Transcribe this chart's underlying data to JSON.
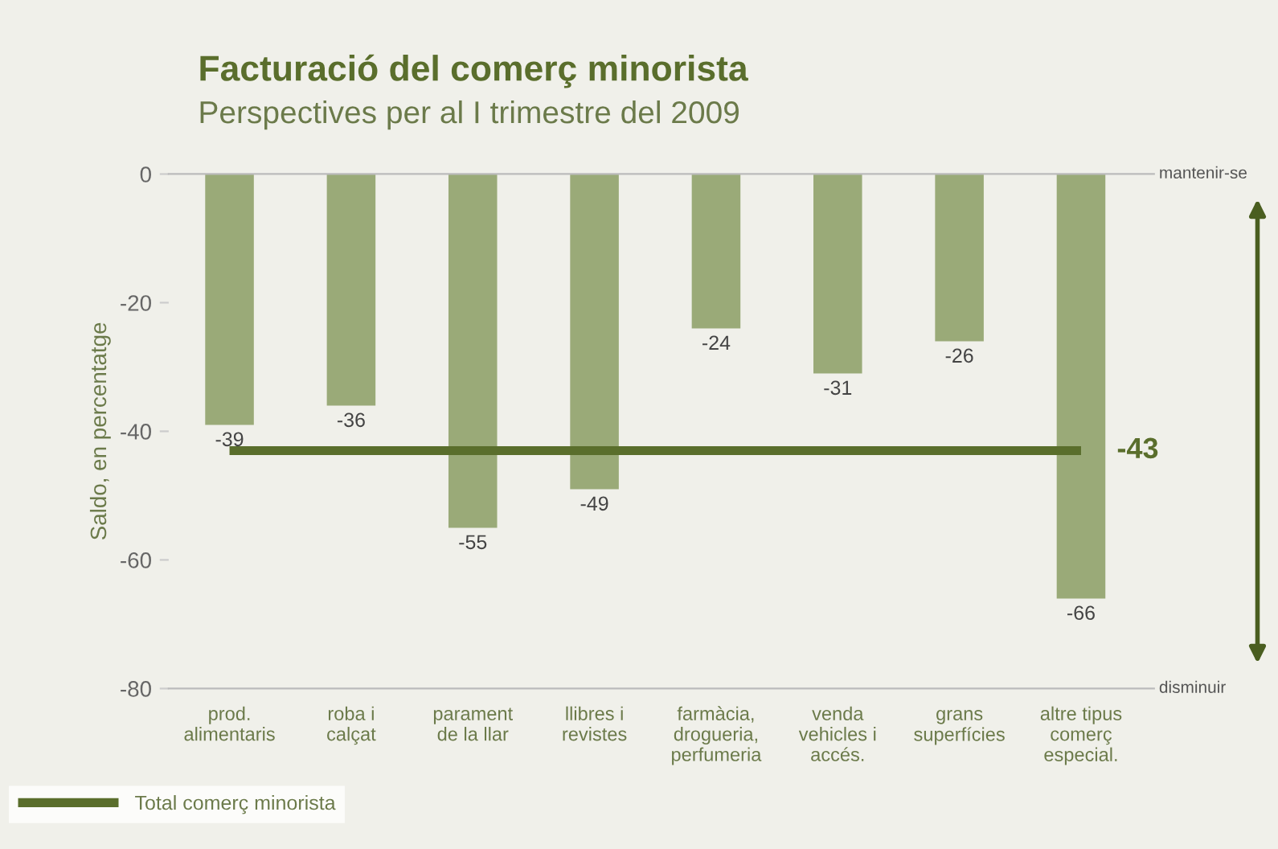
{
  "chart_data": {
    "type": "bar",
    "title": "Facturació del comerç minorista",
    "subtitle": "Perspectives per al I trimestre del 2009",
    "ylabel": "Saldo, en percentatge",
    "categories": [
      "prod.\nalimentaris",
      "roba i\ncalçat",
      "parament\nde la llar",
      "llibres i\nrevistes",
      "farmàcia,\ndrogueria,\nperfumeria",
      "venda\nvehicles i\naccés.",
      "grans\nsuperfícies",
      "altre tipus\ncomerç\nespecial."
    ],
    "series": [
      {
        "color": "#9aaa78",
        "values": [
          -39,
          -36,
          -55,
          -49,
          -24,
          -31,
          -26,
          -66
        ],
        "data_labels": true
      },
      {
        "type": "line",
        "name": "Total comerç minorista",
        "color": "#5a6e2c",
        "values": [
          -43,
          -43,
          -43,
          -43,
          -43,
          -43,
          -43,
          -43
        ],
        "value_labels": [
          null,
          null,
          null,
          null,
          null,
          null,
          null,
          "-43"
        ]
      }
    ],
    "ylim": [
      -80,
      0
    ],
    "yticks": [
      -80,
      -60,
      -40,
      -20,
      0
    ],
    "grid": false,
    "legend": "bottom left",
    "annotations": [
      "mantenir-se",
      "disminuir"
    ]
  }
}
